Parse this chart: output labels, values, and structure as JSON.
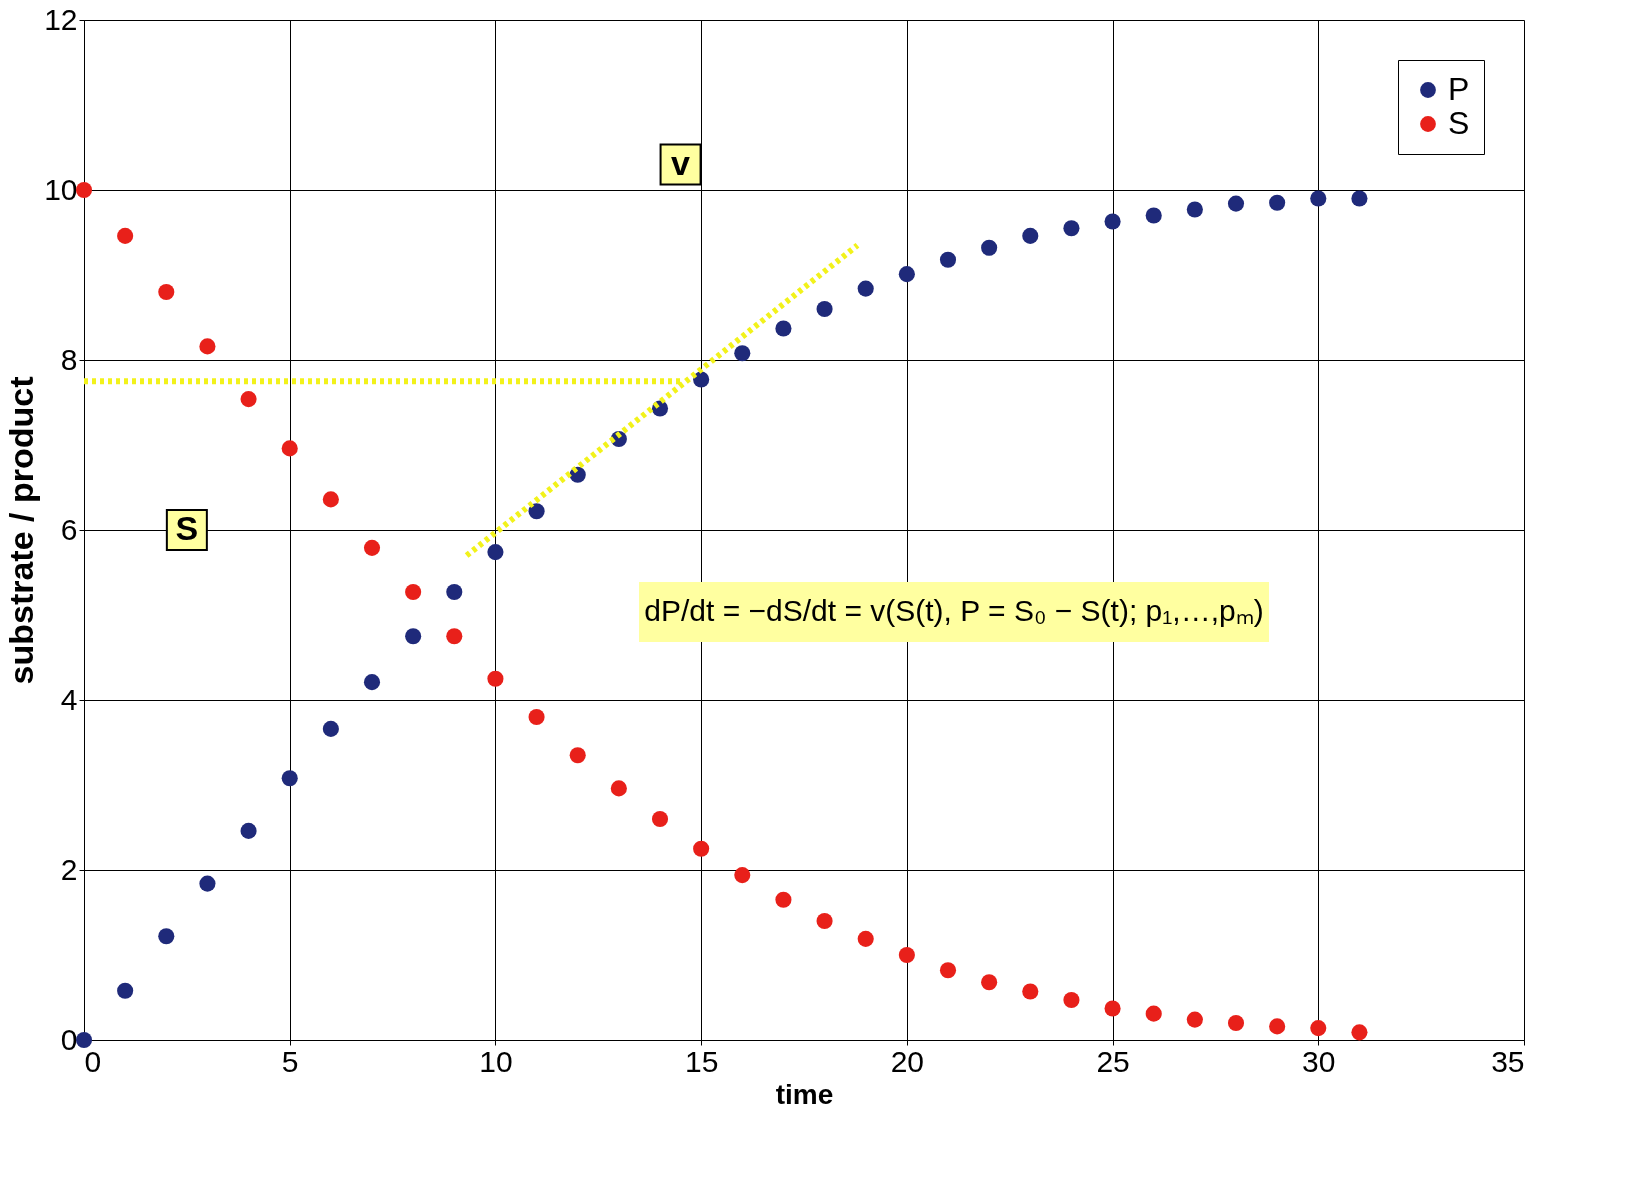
{
  "chart_data": {
    "type": "scatter",
    "xlabel": "time",
    "ylabel": "substrate / product",
    "x": [
      0,
      1,
      2,
      3,
      4,
      5,
      6,
      7,
      8,
      9,
      10,
      11,
      12,
      13,
      14,
      15,
      16,
      17,
      18,
      19,
      20,
      21,
      22,
      23,
      24,
      25,
      26,
      27,
      28,
      29,
      30,
      31
    ],
    "series": [
      {
        "name": "P",
        "color": "#1f2a7a",
        "values": [
          0,
          0.58,
          1.22,
          1.84,
          2.46,
          3.08,
          3.66,
          4.21,
          4.75,
          5.27,
          5.74,
          6.22,
          6.65,
          7.07,
          7.43,
          7.77,
          8.08,
          8.37,
          8.6,
          8.84,
          9.01,
          9.18,
          9.32,
          9.46,
          9.55,
          9.63,
          9.7,
          9.77,
          9.84,
          9.85,
          9.9,
          9.9
        ]
      },
      {
        "name": "S",
        "color": "#e8201a",
        "values": [
          10,
          9.46,
          8.8,
          8.16,
          7.54,
          6.96,
          6.36,
          5.79,
          5.27,
          4.75,
          4.25,
          3.8,
          3.35,
          2.96,
          2.6,
          2.25,
          1.94,
          1.65,
          1.4,
          1.19,
          1.0,
          0.82,
          0.68,
          0.57,
          0.47,
          0.37,
          0.31,
          0.24,
          0.2,
          0.16,
          0.14,
          0.09
        ]
      },
      {
        "type": "line",
        "color": "#f2f21a",
        "line_style": "dotted",
        "marker": "none",
        "x": [
          0,
          14.5
        ],
        "values": [
          7.75,
          7.75
        ]
      },
      {
        "type": "line",
        "color": "#f2f21a",
        "line_style": "dotted",
        "marker": "none",
        "x": [
          9.3,
          18.8
        ],
        "values": [
          5.7,
          9.35
        ]
      }
    ],
    "annotations": [
      {
        "text": "v",
        "x": 14.5,
        "y": 10.3
      },
      {
        "text": "S",
        "x": 2.5,
        "y": 6.0
      },
      "dP/dt = −dS/dt = v(S(t), P = S₀ − S(t); p₁,…,pₘ)"
    ],
    "xlim": [
      0,
      35
    ],
    "xticks": [
      0,
      5,
      10,
      15,
      20,
      25,
      30,
      35
    ],
    "ylim": [
      0,
      12
    ],
    "yticks": [
      0,
      2,
      4,
      6,
      8,
      10,
      12
    ],
    "grid": true,
    "legend": "top right",
    "marker": "circle"
  }
}
